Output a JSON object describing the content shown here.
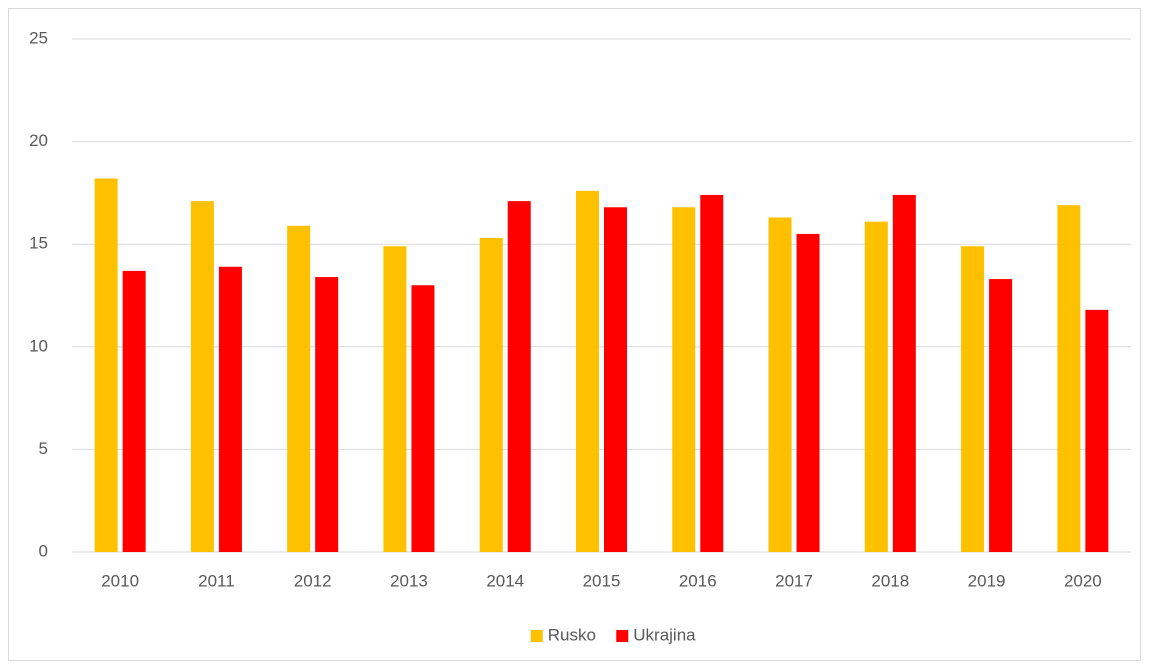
{
  "chart_data": {
    "type": "bar",
    "categories": [
      "2010",
      "2011",
      "2012",
      "2013",
      "2014",
      "2015",
      "2016",
      "2017",
      "2018",
      "2019",
      "2020"
    ],
    "series": [
      {
        "name": "Rusko",
        "color": "#ffc000",
        "values": [
          18.2,
          17.1,
          15.9,
          14.9,
          15.3,
          17.6,
          16.8,
          16.3,
          16.1,
          14.9,
          16.9
        ]
      },
      {
        "name": "Ukrajina",
        "color": "#ff0000",
        "values": [
          13.7,
          13.9,
          13.4,
          13.0,
          17.1,
          16.8,
          17.4,
          15.5,
          17.4,
          13.3,
          11.8
        ]
      }
    ],
    "ylim": [
      0,
      25
    ],
    "yticks": [
      0,
      5,
      10,
      15,
      20,
      25
    ],
    "grid": true,
    "legend": "bottom"
  }
}
